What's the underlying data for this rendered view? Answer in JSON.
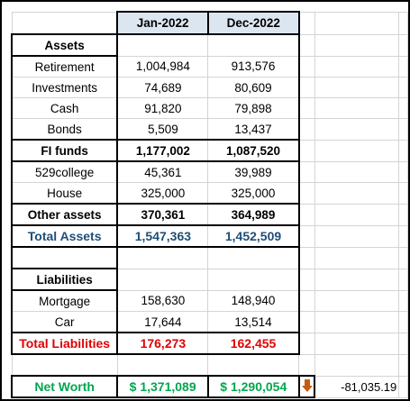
{
  "columns": [
    "Jan-2022",
    "Dec-2022"
  ],
  "assets": {
    "title": "Assets",
    "rows": [
      {
        "label": "Retirement",
        "values": [
          "1,004,984",
          "913,576"
        ]
      },
      {
        "label": "Investments",
        "values": [
          "74,689",
          "80,609"
        ]
      },
      {
        "label": "Cash",
        "values": [
          "91,820",
          "79,898"
        ]
      },
      {
        "label": "Bonds",
        "values": [
          "5,509",
          "13,437"
        ]
      },
      {
        "label": "FI funds",
        "values": [
          "1,177,002",
          "1,087,520"
        ]
      },
      {
        "label": "529college",
        "values": [
          "45,361",
          "39,989"
        ]
      },
      {
        "label": "House",
        "values": [
          "325,000",
          "325,000"
        ]
      },
      {
        "label": "Other assets",
        "values": [
          "370,361",
          "364,989"
        ]
      }
    ]
  },
  "total_assets": {
    "label": "Total Assets",
    "values": [
      "1,547,363",
      "1,452,509"
    ]
  },
  "liabilities": {
    "title": "Liabilities",
    "rows": [
      {
        "label": "Mortgage",
        "values": [
          "158,630",
          "148,940"
        ]
      },
      {
        "label": "Car",
        "values": [
          "17,644",
          "13,514"
        ]
      }
    ]
  },
  "total_liabilities": {
    "label": "Total Liabilities",
    "values": [
      "176,273",
      "162,455"
    ]
  },
  "net_worth": {
    "label": "Net Worth",
    "values": [
      "$ 1,371,089",
      "$ 1,290,054"
    ],
    "change": "-81,035.19"
  }
}
